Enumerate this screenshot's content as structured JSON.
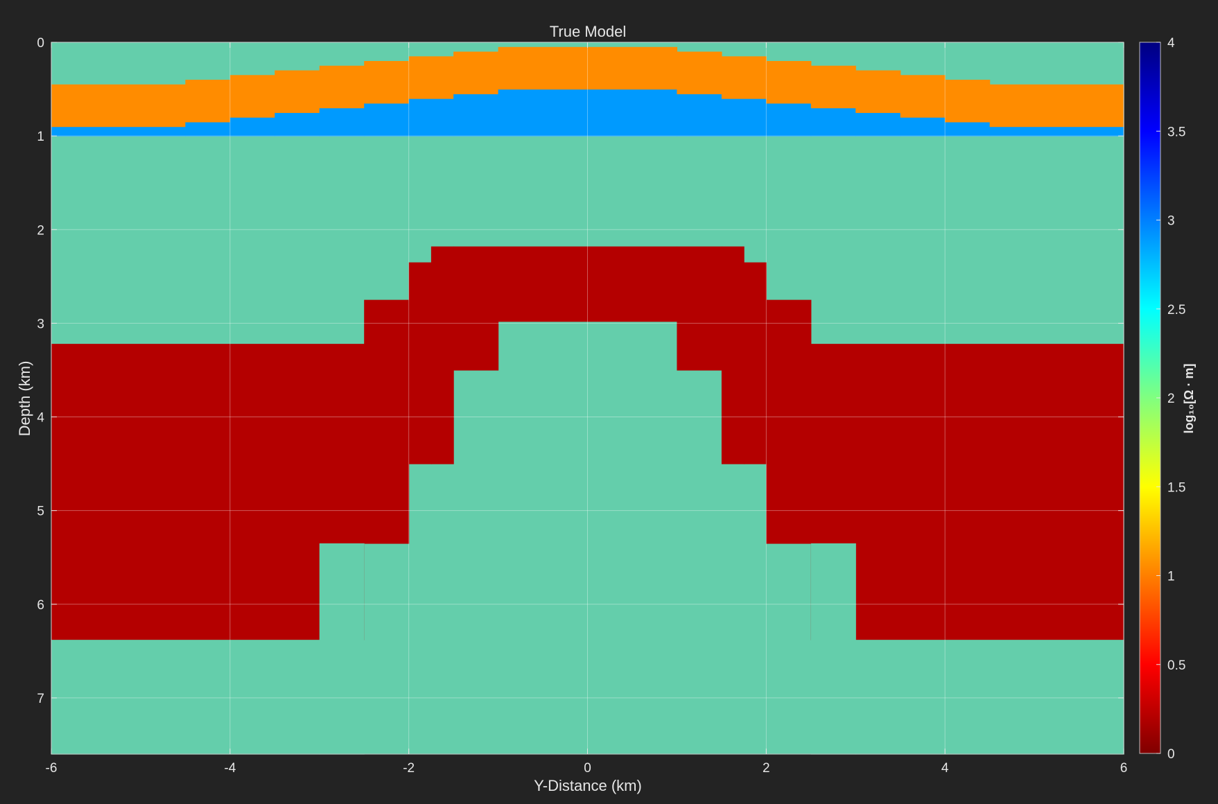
{
  "chart_data": {
    "type": "heatmap",
    "title": "True Model",
    "xlabel": "Y-Distance (km)",
    "ylabel": "Depth (km)",
    "xlim": [
      -6,
      6
    ],
    "ylim": [
      0,
      7.6
    ],
    "y_reversed": true,
    "grid": true,
    "x_ticks": [
      "-6",
      "-4",
      "-2",
      "0",
      "2",
      "4",
      "6"
    ],
    "y_ticks": [
      "0",
      "1",
      "2",
      "3",
      "4",
      "5",
      "6",
      "7"
    ],
    "colorbar": {
      "label": "log₁₀[Ω · m]",
      "range": [
        0,
        4
      ],
      "ticks": [
        "0",
        "0.5",
        "1",
        "1.5",
        "2",
        "2.5",
        "3",
        "3.5",
        "4"
      ],
      "colormap": "jet reversed (red low, blue high)"
    },
    "units": {
      "background": {
        "log10_resistivity": 2,
        "color": "#64ceab"
      },
      "orange_layer": {
        "log10_resistivity": 1,
        "color": "#ff8c00"
      },
      "blue_layer": {
        "log10_resistivity": 3,
        "color": "#009afe"
      },
      "conductor": {
        "log10_resistivity": 0,
        "color": "#b40000"
      }
    },
    "orange_layer_profile": {
      "x_edges": [
        -6,
        -4.5,
        -4,
        -3.5,
        -3,
        -2.5,
        -2,
        -1.5,
        -1,
        1,
        1.5,
        2,
        2.5,
        3,
        3.5,
        4,
        4.5,
        6
      ],
      "top_depth": [
        0.45,
        0.4,
        0.35,
        0.3,
        0.25,
        0.2,
        0.15,
        0.1,
        0.05,
        0.1,
        0.15,
        0.2,
        0.25,
        0.3,
        0.35,
        0.4,
        0.45
      ],
      "bottom_depth": [
        0.9,
        0.85,
        0.8,
        0.75,
        0.7,
        0.65,
        0.6,
        0.55,
        0.5,
        0.55,
        0.6,
        0.65,
        0.7,
        0.75,
        0.8,
        0.85,
        0.9
      ]
    },
    "blue_layer_bottom_depth": 1.0,
    "conductor_cells": [
      {
        "x": [
          -6,
          -2.5
        ],
        "depth": [
          3.22,
          6.38
        ]
      },
      {
        "x": [
          -2.5,
          -2
        ],
        "depth": [
          2.75,
          5.35
        ]
      },
      {
        "x": [
          -2,
          -1.75
        ],
        "depth": [
          2.35,
          4.5
        ]
      },
      {
        "x": [
          -1.75,
          -1.5
        ],
        "depth": [
          2.18,
          4.5
        ]
      },
      {
        "x": [
          -1.5,
          -1
        ],
        "depth": [
          2.18,
          3.5
        ]
      },
      {
        "x": [
          -1,
          1
        ],
        "depth": [
          2.18,
          2.98
        ]
      },
      {
        "x": [
          1,
          1.5
        ],
        "depth": [
          2.18,
          3.5
        ]
      },
      {
        "x": [
          1.5,
          1.75
        ],
        "depth": [
          2.18,
          4.5
        ]
      },
      {
        "x": [
          1.75,
          2
        ],
        "depth": [
          2.35,
          4.5
        ]
      },
      {
        "x": [
          2,
          2.5
        ],
        "depth": [
          2.75,
          5.35
        ]
      },
      {
        "x": [
          2.5,
          6
        ],
        "depth": [
          3.22,
          6.38
        ]
      }
    ],
    "background_cutouts_in_conductor": [
      {
        "x": [
          -6,
          -3
        ],
        "depth": [
          6.38,
          7.6
        ]
      },
      {
        "x": [
          -3,
          -2.5
        ],
        "depth": [
          5.35,
          7.6
        ]
      },
      {
        "x": [
          2.5,
          3
        ],
        "depth": [
          5.35,
          7.6
        ]
      },
      {
        "x": [
          3,
          6
        ],
        "depth": [
          6.38,
          7.6
        ]
      }
    ]
  }
}
